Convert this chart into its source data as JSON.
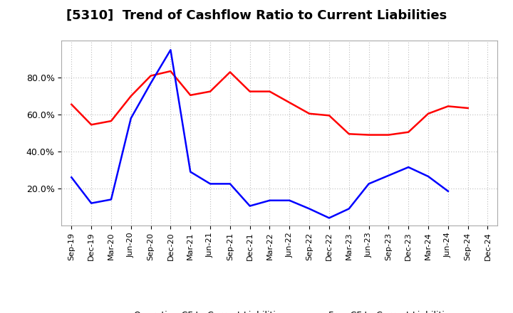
{
  "title": "[5310]  Trend of Cashflow Ratio to Current Liabilities",
  "x_labels": [
    "Sep-19",
    "Dec-19",
    "Mar-20",
    "Jun-20",
    "Sep-20",
    "Dec-20",
    "Mar-21",
    "Jun-21",
    "Sep-21",
    "Dec-21",
    "Mar-22",
    "Jun-22",
    "Sep-22",
    "Dec-22",
    "Mar-23",
    "Jun-23",
    "Sep-23",
    "Dec-23",
    "Mar-24",
    "Jun-24",
    "Sep-24",
    "Dec-24"
  ],
  "operating_cf": [
    0.655,
    0.545,
    0.565,
    0.7,
    0.81,
    0.835,
    0.705,
    0.725,
    0.83,
    0.725,
    0.725,
    0.665,
    0.605,
    0.595,
    0.495,
    0.49,
    0.49,
    0.505,
    0.605,
    0.645,
    0.635,
    null
  ],
  "free_cf": [
    0.26,
    0.12,
    0.14,
    0.58,
    0.77,
    0.95,
    0.29,
    0.225,
    0.225,
    0.105,
    0.135,
    0.135,
    0.09,
    0.04,
    0.09,
    0.225,
    0.27,
    0.315,
    0.265,
    0.185,
    null,
    null
  ],
  "operating_color": "#FF0000",
  "free_color": "#0000FF",
  "ylim": [
    0.0,
    1.0
  ],
  "yticks": [
    0.2,
    0.4,
    0.6,
    0.8
  ],
  "ytick_labels": [
    "20.0%",
    "40.0%",
    "60.0%",
    "80.0%"
  ],
  "background_color": "#FFFFFF",
  "grid_color": "#AAAAAA",
  "title_fontsize": 13,
  "legend_fontsize": 9,
  "tick_fontsize": 8
}
